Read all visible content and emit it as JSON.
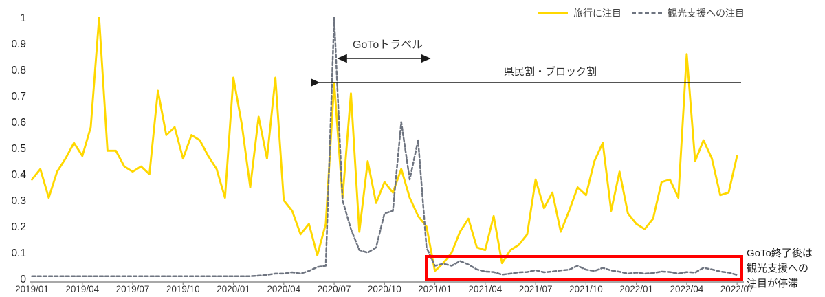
{
  "chart_data": {
    "type": "line",
    "title": "",
    "x_start": "2019/01",
    "points_interval_months": 0.5,
    "x_tick_labels": [
      "2019/01",
      "2019/04",
      "2019/07",
      "2019/10",
      "2020/01",
      "2020/04",
      "2020/07",
      "2020/10",
      "2021/01",
      "2021/04",
      "2021/07",
      "2021/10",
      "2022/01",
      "2022/04",
      "2022/07"
    ],
    "y_tick_labels": [
      "0",
      "0.1",
      "0.2",
      "0.3",
      "0.4",
      "0.5",
      "0.6",
      "0.7",
      "0.8",
      "0.9",
      "1"
    ],
    "ylim": [
      0,
      1
    ],
    "grid": false,
    "legend_position": "top-right",
    "axis_color": "#8c8c8c",
    "series": [
      {
        "name": "旅行に注目",
        "color": "#FFD800",
        "style": "solid",
        "values": [
          0.38,
          0.42,
          0.31,
          0.41,
          0.46,
          0.52,
          0.47,
          0.58,
          1.0,
          0.49,
          0.49,
          0.43,
          0.41,
          0.43,
          0.4,
          0.72,
          0.55,
          0.58,
          0.46,
          0.55,
          0.53,
          0.47,
          0.42,
          0.31,
          0.77,
          0.59,
          0.35,
          0.62,
          0.46,
          0.77,
          0.3,
          0.26,
          0.17,
          0.21,
          0.09,
          0.21,
          0.75,
          0.31,
          0.71,
          0.18,
          0.45,
          0.29,
          0.37,
          0.33,
          0.42,
          0.31,
          0.24,
          0.2,
          0.03,
          0.06,
          0.1,
          0.18,
          0.23,
          0.12,
          0.11,
          0.24,
          0.06,
          0.11,
          0.13,
          0.17,
          0.38,
          0.27,
          0.33,
          0.18,
          0.26,
          0.35,
          0.32,
          0.45,
          0.52,
          0.26,
          0.41,
          0.25,
          0.21,
          0.19,
          0.23,
          0.37,
          0.38,
          0.31,
          0.86,
          0.45,
          0.53,
          0.46,
          0.32,
          0.33,
          0.47
        ]
      },
      {
        "name": "観光支援への注目",
        "color": "#6E7480",
        "style": "dashed",
        "values": [
          0.01,
          0.01,
          0.01,
          0.01,
          0.01,
          0.01,
          0.01,
          0.01,
          0.01,
          0.01,
          0.01,
          0.01,
          0.01,
          0.01,
          0.01,
          0.01,
          0.01,
          0.01,
          0.01,
          0.01,
          0.01,
          0.01,
          0.01,
          0.01,
          0.01,
          0.01,
          0.01,
          0.012,
          0.015,
          0.02,
          0.02,
          0.025,
          0.02,
          0.03,
          0.045,
          0.05,
          1.0,
          0.3,
          0.19,
          0.11,
          0.1,
          0.12,
          0.25,
          0.26,
          0.6,
          0.38,
          0.53,
          0.12,
          0.05,
          0.058,
          0.05,
          0.068,
          0.055,
          0.036,
          0.028,
          0.026,
          0.016,
          0.02,
          0.025,
          0.026,
          0.033,
          0.025,
          0.028,
          0.032,
          0.035,
          0.05,
          0.035,
          0.03,
          0.042,
          0.032,
          0.027,
          0.02,
          0.024,
          0.02,
          0.022,
          0.028,
          0.026,
          0.02,
          0.026,
          0.024,
          0.042,
          0.036,
          0.028,
          0.024,
          0.015
        ]
      }
    ]
  },
  "annotations": {
    "goto_travel_label": "GoToトラベル",
    "kenmin_block_label": "県民割・ブロック割",
    "note_line1": "GoTo終了後は",
    "note_line2": "観光支援への",
    "note_line3": "注目が停滞",
    "highlight_box_color": "#FF0000",
    "arrow_color": "#1a1a1a"
  }
}
